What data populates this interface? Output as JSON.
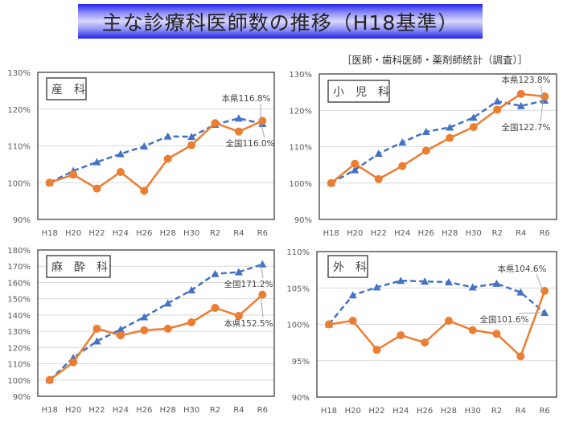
{
  "title": "主な診療科医師数の推移（H18基準）",
  "source": "［医師・歯科医師・薬剤師統計（調査）］",
  "colors": {
    "prefecture": "#ED7D31",
    "national": "#4472C4",
    "title_bar": "#2323F0"
  },
  "chart_data": [
    {
      "type": "line",
      "title": "産　科",
      "categories": [
        "H18",
        "H20",
        "H22",
        "H24",
        "H26",
        "H28",
        "H30",
        "R2",
        "R4",
        "R6"
      ],
      "ylim": [
        90,
        130
      ],
      "yticks": [
        "90%",
        "100%",
        "110%",
        "120%",
        "130%"
      ],
      "grid": true,
      "series": [
        {
          "name": "本県",
          "style": "solid-circle",
          "values": [
            100,
            102.2,
            98.4,
            102.9,
            97.8,
            106.5,
            110.2,
            116.2,
            113.9,
            116.8
          ]
        },
        {
          "name": "全国",
          "style": "dashed-triangle",
          "values": [
            100,
            103.2,
            105.6,
            107.8,
            109.9,
            112.6,
            112.5,
            115.8,
            117.5,
            116.0
          ]
        }
      ],
      "annotations": [
        "本県116.8%",
        "全国116.0%"
      ]
    },
    {
      "type": "line",
      "title": "小　児　科",
      "categories": [
        "H18",
        "H20",
        "H22",
        "H24",
        "H26",
        "H28",
        "H30",
        "R2",
        "R4",
        "R6"
      ],
      "ylim": [
        90,
        130
      ],
      "yticks": [
        "90%",
        "100%",
        "110%",
        "120%",
        "130%"
      ],
      "grid": true,
      "series": [
        {
          "name": "本県",
          "style": "solid-circle",
          "values": [
            100,
            105.3,
            101.1,
            104.7,
            108.9,
            112.4,
            115.4,
            120.2,
            124.5,
            123.8
          ]
        },
        {
          "name": "全国",
          "style": "dashed-triangle",
          "values": [
            100,
            103.6,
            108.1,
            111.2,
            114.1,
            115.3,
            118.0,
            122.5,
            121.2,
            122.7
          ]
        }
      ],
      "annotations": [
        "本県123.8%",
        "全国122.7%"
      ]
    },
    {
      "type": "line",
      "title": "麻　酔　科",
      "categories": [
        "H18",
        "H20",
        "H22",
        "H24",
        "H26",
        "H28",
        "H30",
        "R2",
        "R4",
        "R6"
      ],
      "ylim": [
        90,
        180
      ],
      "yticks": [
        "90%",
        "100%",
        "110%",
        "120%",
        "130%",
        "140%",
        "150%",
        "160%",
        "170%",
        "180%"
      ],
      "grid": true,
      "series": [
        {
          "name": "本県",
          "style": "solid-circle",
          "values": [
            100,
            110.9,
            131.6,
            127.5,
            130.6,
            131.6,
            135.5,
            144.4,
            139.5,
            152.5
          ]
        },
        {
          "name": "全国",
          "style": "dashed-triangle",
          "values": [
            100,
            113.7,
            123.9,
            131.1,
            138.7,
            147.2,
            155.3,
            165.3,
            166.4,
            171.2
          ]
        }
      ],
      "annotations": [
        "本県152.5%",
        "全国171.2%"
      ]
    },
    {
      "type": "line",
      "title": "外　科",
      "categories": [
        "H18",
        "H20",
        "H22",
        "H24",
        "H26",
        "H28",
        "H30",
        "R2",
        "R4",
        "R6"
      ],
      "ylim": [
        90,
        110
      ],
      "yticks": [
        "90%",
        "95%",
        "100%",
        "105%",
        "110%"
      ],
      "grid": true,
      "series": [
        {
          "name": "本県",
          "style": "solid-circle",
          "values": [
            100,
            100.5,
            96.5,
            98.5,
            97.5,
            100.5,
            99.2,
            98.7,
            95.6,
            104.6
          ]
        },
        {
          "name": "全国",
          "style": "dashed-triangle",
          "values": [
            100,
            104.0,
            105.1,
            106.0,
            105.9,
            105.8,
            105.1,
            105.6,
            104.4,
            101.6
          ]
        }
      ],
      "annotations": [
        "本県104.6%",
        "全国101.6%"
      ]
    }
  ]
}
